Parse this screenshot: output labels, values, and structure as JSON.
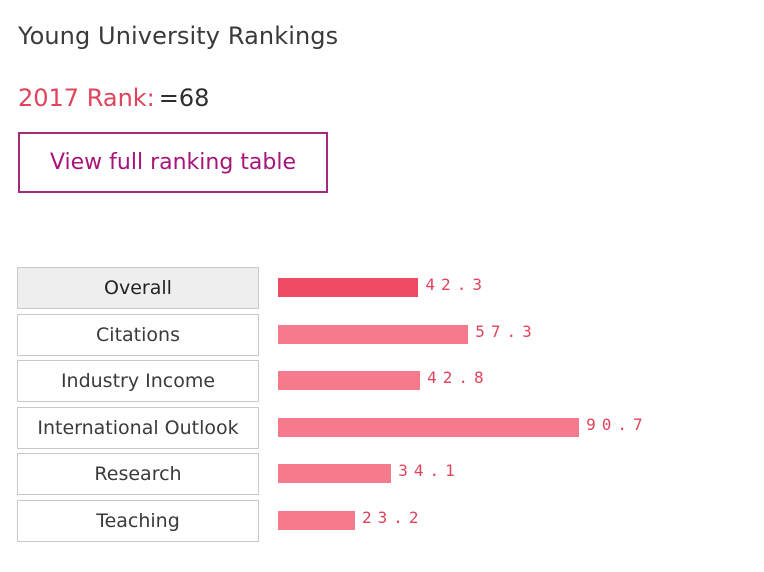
{
  "header": {
    "title": "Young University Rankings"
  },
  "rank": {
    "label": "2017 Rank:",
    "value": "=68"
  },
  "view_button": {
    "label": "View full ranking table"
  },
  "colors": {
    "accent": "#e0445c",
    "button_border": "#a52a7c",
    "bar": "#f47a8c",
    "bar_active": "#ef4a64"
  },
  "chart_data": {
    "type": "bar",
    "orientation": "horizontal",
    "categories": [
      "Overall",
      "Citations",
      "Industry Income",
      "International Outlook",
      "Research",
      "Teaching"
    ],
    "values": [
      42.3,
      57.3,
      42.8,
      90.7,
      34.1,
      23.2
    ],
    "value_labels": [
      "42.3",
      "57.3",
      "42.8",
      "90.7",
      "34.1",
      "23.2"
    ],
    "xlim": [
      0,
      100
    ],
    "selected": "Overall"
  }
}
